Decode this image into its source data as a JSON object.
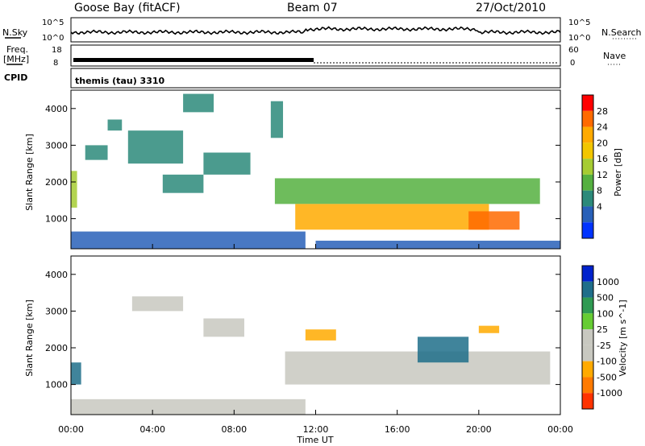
{
  "header": {
    "station": "Goose Bay (fitACF)",
    "beam": "Beam 07",
    "date": "27/Oct/2010"
  },
  "noise_panel": {
    "left_label": "N.Sky",
    "right_label": "N.Search",
    "left_ticks": [
      "10^5",
      "10^0"
    ],
    "right_ticks": [
      "10^5",
      "10^0"
    ]
  },
  "freq_panel": {
    "left_label_line1": "Freq.",
    "left_label_line2": "[MHz]",
    "right_label": "Nave",
    "left_ticks": [
      "18",
      "8"
    ],
    "right_ticks": [
      "60",
      "0"
    ]
  },
  "cpid_panel": {
    "label": "CPID",
    "value": "themis (tau) 3310"
  },
  "power_panel": {
    "ylabel": "Slant Range [km]",
    "y_ticks": [
      "4000",
      "3000",
      "2000",
      "1000"
    ],
    "colorbar_label": "Power [dB]",
    "colorbar_ticks": [
      "28",
      "24",
      "20",
      "16",
      "12",
      "8",
      "4"
    ],
    "colorbar_colors": [
      "#ff0000",
      "#ff6a00",
      "#ffaa00",
      "#f2c600",
      "#a6cc33",
      "#55b040",
      "#2c8a7a",
      "#2860b8",
      "#0033ff"
    ]
  },
  "velocity_panel": {
    "ylabel": "Slant Range [km]",
    "y_ticks": [
      "4000",
      "3000",
      "2000",
      "1000"
    ],
    "colorbar_label": "Velocity [m s^-1]",
    "colorbar_ticks": [
      "1000",
      "500",
      "100",
      "25",
      "-25",
      "-100",
      "-500",
      "-1000"
    ],
    "colorbar_colors": [
      "#0022cc",
      "#1f6e8a",
      "#2f9a52",
      "#66cc33",
      "#c8c8c0",
      "#c8c8c0",
      "#ffaa00",
      "#ff7a00",
      "#ff3300"
    ]
  },
  "x_axis": {
    "label": "Time UT",
    "ticks": [
      "00:00",
      "04:00",
      "08:00",
      "12:00",
      "16:00",
      "20:00",
      "00:00"
    ]
  },
  "chart_data": {
    "type": "heatmap",
    "title": "Goose Bay (fitACF)  Beam 07  27/Oct/2010",
    "xlabel": "Time UT",
    "ylabel": "Slant Range [km]",
    "x_range_hours": [
      0,
      24
    ],
    "y_range_km": [
      180,
      4500
    ],
    "power_scale_db": [
      0,
      30
    ],
    "velocity_scale_ms": [
      -1000,
      1000
    ],
    "grid": false,
    "legend": "right colorbars",
    "power_features": [
      {
        "t0": 0.0,
        "t1": 0.3,
        "r0": 1300,
        "r1": 2300,
        "db": 14
      },
      {
        "t0": 0.7,
        "t1": 1.8,
        "r0": 2600,
        "r1": 3000,
        "db": 6
      },
      {
        "t0": 1.8,
        "t1": 2.5,
        "r0": 3400,
        "r1": 3700,
        "db": 6
      },
      {
        "t0": 2.8,
        "t1": 5.5,
        "r0": 2500,
        "r1": 3400,
        "db": 6
      },
      {
        "t0": 4.5,
        "t1": 6.5,
        "r0": 1700,
        "r1": 2200,
        "db": 6
      },
      {
        "t0": 6.5,
        "t1": 8.8,
        "r0": 2200,
        "r1": 2800,
        "db": 7
      },
      {
        "t0": 5.5,
        "t1": 7.0,
        "r0": 3900,
        "r1": 4400,
        "db": 6
      },
      {
        "t0": 9.8,
        "t1": 10.4,
        "r0": 3200,
        "r1": 4200,
        "db": 6
      },
      {
        "t0": 10.0,
        "t1": 23.0,
        "r0": 1400,
        "r1": 2100,
        "db": 10
      },
      {
        "t0": 11.0,
        "t1": 20.5,
        "r0": 700,
        "r1": 1400,
        "db": 22
      },
      {
        "t0": 19.5,
        "t1": 22.0,
        "r0": 700,
        "r1": 1200,
        "db": 26
      },
      {
        "t0": 0.0,
        "t1": 11.5,
        "r0": 180,
        "r1": 650,
        "db": 5
      },
      {
        "t0": 12.0,
        "t1": 24.0,
        "r0": 180,
        "r1": 400,
        "db": 4
      }
    ],
    "velocity_features": [
      {
        "t0": 0.0,
        "t1": 0.5,
        "r0": 1000,
        "r1": 1600,
        "v": 300
      },
      {
        "t0": 3.0,
        "t1": 5.5,
        "r0": 3000,
        "r1": 3400,
        "v": 0
      },
      {
        "t0": 6.5,
        "t1": 8.5,
        "r0": 2300,
        "r1": 2800,
        "v": 0
      },
      {
        "t0": 10.5,
        "t1": 23.5,
        "r0": 1000,
        "r1": 1900,
        "v": 0
      },
      {
        "t0": 11.5,
        "t1": 13.0,
        "r0": 2200,
        "r1": 2500,
        "v": -300
      },
      {
        "t0": 20.0,
        "t1": 21.0,
        "r0": 2400,
        "r1": 2600,
        "v": -300
      },
      {
        "t0": 17.0,
        "t1": 19.5,
        "r0": 1600,
        "r1": 2300,
        "v": 150
      },
      {
        "t0": 0.0,
        "t1": 11.5,
        "r0": 180,
        "r1": 600,
        "v": -60
      }
    ]
  }
}
